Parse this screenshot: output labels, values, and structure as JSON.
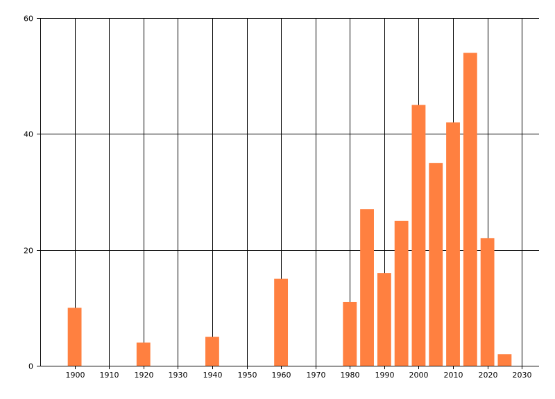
{
  "chart_data": {
    "type": "bar",
    "x": [
      1900,
      1920,
      1940,
      1960,
      1980,
      1985,
      1990,
      1995,
      2000,
      2005,
      2010,
      2015,
      2020,
      2025
    ],
    "values": [
      10,
      4,
      5,
      15,
      11,
      27,
      16,
      25,
      45,
      35,
      42,
      54,
      22,
      2
    ],
    "title": "",
    "xlabel": "",
    "ylabel": "",
    "xlim": [
      1890,
      2035
    ],
    "ylim": [
      0,
      60
    ],
    "xticks": [
      1900,
      1910,
      1920,
      1930,
      1940,
      1950,
      1960,
      1970,
      1980,
      1990,
      2000,
      2010,
      2020,
      2030
    ],
    "yticks": [
      0,
      20,
      40,
      60
    ],
    "bar_width_years": 4,
    "grid": true,
    "legend": "none",
    "bar_color": "#ff8040"
  }
}
